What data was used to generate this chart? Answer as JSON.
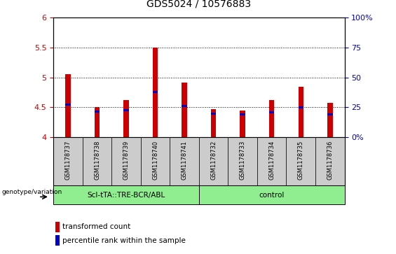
{
  "title": "GDS5024 / 10576883",
  "samples": [
    "GSM1178737",
    "GSM1178738",
    "GSM1178739",
    "GSM1178740",
    "GSM1178741",
    "GSM1178732",
    "GSM1178733",
    "GSM1178734",
    "GSM1178735",
    "GSM1178736"
  ],
  "red_tops": [
    5.06,
    4.5,
    4.62,
    5.5,
    4.92,
    4.47,
    4.44,
    4.62,
    4.84,
    4.57
  ],
  "blue_vals": [
    4.55,
    4.43,
    4.45,
    4.76,
    4.52,
    4.39,
    4.38,
    4.42,
    4.5,
    4.38
  ],
  "bar_bottom": 4.0,
  "ylim_left": [
    4.0,
    6.0
  ],
  "ylim_right": [
    0,
    100
  ],
  "yticks_left": [
    4.0,
    4.5,
    5.0,
    5.5,
    6.0
  ],
  "yticks_right": [
    0,
    25,
    50,
    75,
    100
  ],
  "ytick_labels_left": [
    "4",
    "4.5",
    "5",
    "5.5",
    "6"
  ],
  "ytick_labels_right": [
    "0%",
    "25",
    "50",
    "75",
    "100%"
  ],
  "grid_vals": [
    4.5,
    5.0,
    5.5
  ],
  "group1_label": "ScI-tTA::TRE-BCR/ABL",
  "group2_label": "control",
  "group1_count": 5,
  "group2_count": 5,
  "genotype_label": "genotype/variation",
  "legend1": "transformed count",
  "legend2": "percentile rank within the sample",
  "bar_color": "#cc0000",
  "blue_color": "#0000cc",
  "group_bg_color": "#90ee90",
  "sample_bg_color": "#cccccc",
  "left_tick_color": "#cc0000",
  "right_tick_color": "#0000cc",
  "bar_width": 0.18
}
